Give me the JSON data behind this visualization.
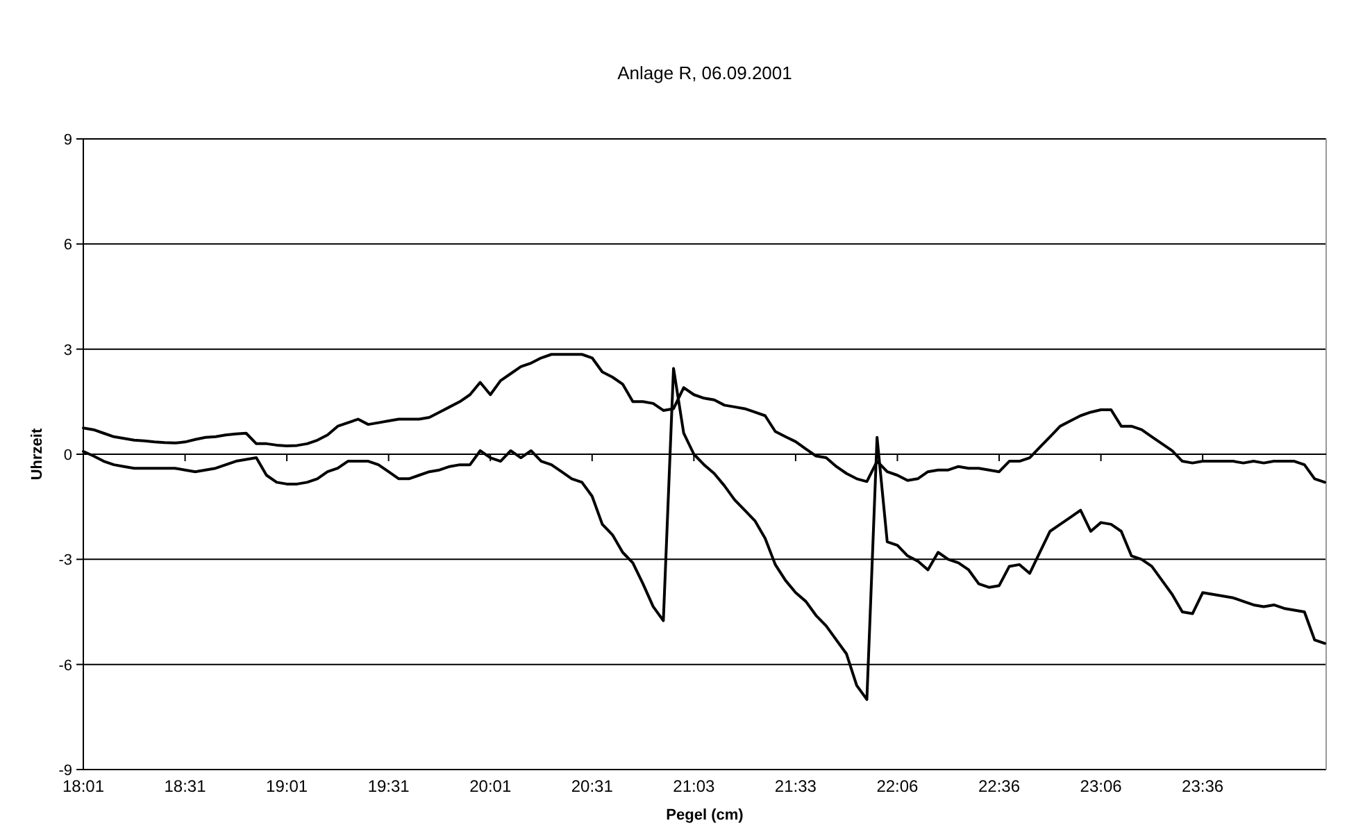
{
  "chart_data": {
    "type": "line",
    "title": "Anlage R, 06.09.2001",
    "xlabel": "Pegel (cm)",
    "ylabel": "Uhrzeit",
    "categories": [
      "18:01",
      null,
      null,
      null,
      null,
      null,
      null,
      null,
      null,
      null,
      "18:31",
      null,
      null,
      null,
      null,
      null,
      null,
      null,
      null,
      null,
      "19:01",
      null,
      null,
      null,
      null,
      null,
      null,
      null,
      null,
      null,
      "19:31",
      null,
      null,
      null,
      null,
      null,
      null,
      null,
      null,
      null,
      "20:01",
      null,
      null,
      null,
      null,
      null,
      null,
      null,
      null,
      null,
      "20:31",
      null,
      null,
      null,
      null,
      null,
      null,
      null,
      null,
      null,
      "21:03",
      null,
      null,
      null,
      null,
      null,
      null,
      null,
      null,
      null,
      "21:33",
      null,
      null,
      null,
      null,
      null,
      null,
      null,
      null,
      null,
      "22:06",
      null,
      null,
      null,
      null,
      null,
      null,
      null,
      null,
      null,
      "22:36",
      null,
      null,
      null,
      null,
      null,
      null,
      null,
      null,
      null,
      "23:06",
      null,
      null,
      null,
      null,
      null,
      null,
      null,
      null,
      null,
      "23:36",
      null,
      null,
      null,
      null,
      null,
      null,
      null,
      null,
      null,
      null,
      null,
      null
    ],
    "series": [
      {
        "color": "#000000",
        "values": [
          0.75,
          0.7,
          0.6,
          0.5,
          0.45,
          0.4,
          0.38,
          0.35,
          0.33,
          0.32,
          0.35,
          0.42,
          0.48,
          0.5,
          0.55,
          0.58,
          0.6,
          0.3,
          0.3,
          0.26,
          0.24,
          0.25,
          0.3,
          0.4,
          0.55,
          0.8,
          0.9,
          1.0,
          0.85,
          0.9,
          0.95,
          1.0,
          1.0,
          1.0,
          1.05,
          1.2,
          1.35,
          1.5,
          1.7,
          2.05,
          1.7,
          2.1,
          2.3,
          2.5,
          2.6,
          2.75,
          2.85,
          2.85,
          2.85,
          2.85,
          2.75,
          2.35,
          2.2,
          2.0,
          1.5,
          1.5,
          1.45,
          1.25,
          1.3,
          1.9,
          1.7,
          1.6,
          1.55,
          1.4,
          1.35,
          1.3,
          1.2,
          1.1,
          0.65,
          0.5,
          0.36,
          0.15,
          -0.05,
          -0.1,
          -0.35,
          -0.55,
          -0.7,
          -0.78,
          -0.2,
          -0.5,
          -0.6,
          -0.75,
          -0.7,
          -0.5,
          -0.45,
          -0.45,
          -0.35,
          -0.4,
          -0.4,
          -0.45,
          -0.5,
          -0.2,
          -0.2,
          -0.1,
          0.2,
          0.5,
          0.8,
          0.95,
          1.1,
          1.2,
          1.27,
          1.27,
          0.8,
          0.8,
          0.7,
          0.5,
          0.3,
          0.1,
          -0.2,
          -0.25,
          -0.2,
          -0.2,
          -0.2,
          -0.2,
          -0.25,
          -0.2,
          -0.25,
          -0.2,
          -0.2,
          -0.2,
          -0.3,
          -0.7,
          -0.8
        ]
      },
      {
        "color": "#000000",
        "values": [
          0.08,
          -0.05,
          -0.2,
          -0.3,
          -0.35,
          -0.4,
          -0.4,
          -0.4,
          -0.4,
          -0.4,
          -0.45,
          -0.5,
          -0.45,
          -0.4,
          -0.3,
          -0.2,
          -0.15,
          -0.1,
          -0.6,
          -0.8,
          -0.85,
          -0.85,
          -0.8,
          -0.7,
          -0.5,
          -0.4,
          -0.2,
          -0.2,
          -0.2,
          -0.3,
          -0.5,
          -0.7,
          -0.7,
          -0.6,
          -0.5,
          -0.45,
          -0.35,
          -0.3,
          -0.3,
          0.1,
          -0.1,
          -0.2,
          0.1,
          -0.1,
          0.1,
          -0.2,
          -0.3,
          -0.5,
          -0.7,
          -0.8,
          -1.2,
          -2.0,
          -2.3,
          -2.8,
          -3.1,
          -3.7,
          -4.35,
          -4.75,
          2.45,
          0.6,
          0.0,
          -0.3,
          -0.55,
          -0.9,
          -1.3,
          -1.6,
          -1.9,
          -2.4,
          -3.15,
          -3.6,
          -3.95,
          -4.2,
          -4.6,
          -4.9,
          -5.3,
          -5.7,
          -6.6,
          -7.0,
          0.48,
          -2.5,
          -2.6,
          -2.9,
          -3.05,
          -3.3,
          -2.8,
          -3.0,
          -3.1,
          -3.3,
          -3.7,
          -3.8,
          -3.75,
          -3.2,
          -3.15,
          -3.4,
          -2.8,
          -2.2,
          -2.0,
          -1.8,
          -1.6,
          -2.2,
          -1.95,
          -2.0,
          -2.2,
          -2.9,
          -3.0,
          -3.2,
          -3.6,
          -4.0,
          -4.5,
          -4.55,
          -3.95,
          -4.0,
          -4.05,
          -4.1,
          -4.2,
          -4.3,
          -4.35,
          -4.3,
          -4.4,
          -4.45,
          -4.5,
          -5.3,
          -5.4
        ]
      }
    ],
    "ylim": [
      -9,
      9
    ],
    "yticks": [
      -9,
      -6,
      -3,
      0,
      3,
      6,
      9
    ],
    "grid": "y",
    "line_style": "solid"
  }
}
